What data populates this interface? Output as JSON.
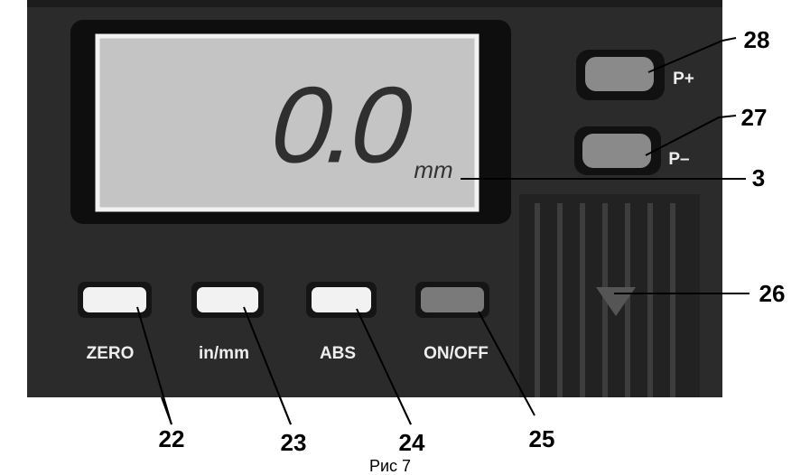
{
  "display": {
    "reading": "0.0",
    "unit": "mm"
  },
  "buttons": {
    "zero": "ZERO",
    "in_mm": "in/mm",
    "abs": "ABS",
    "on_off": "ON/OFF",
    "p_plus": "P+",
    "p_minus": "P–"
  },
  "callouts": {
    "p_plus": "28",
    "p_minus": "27",
    "display": "3",
    "battery": "26",
    "zero": "22",
    "in_mm": "23",
    "abs": "24",
    "on_off": "25"
  },
  "caption": "Рис 7"
}
